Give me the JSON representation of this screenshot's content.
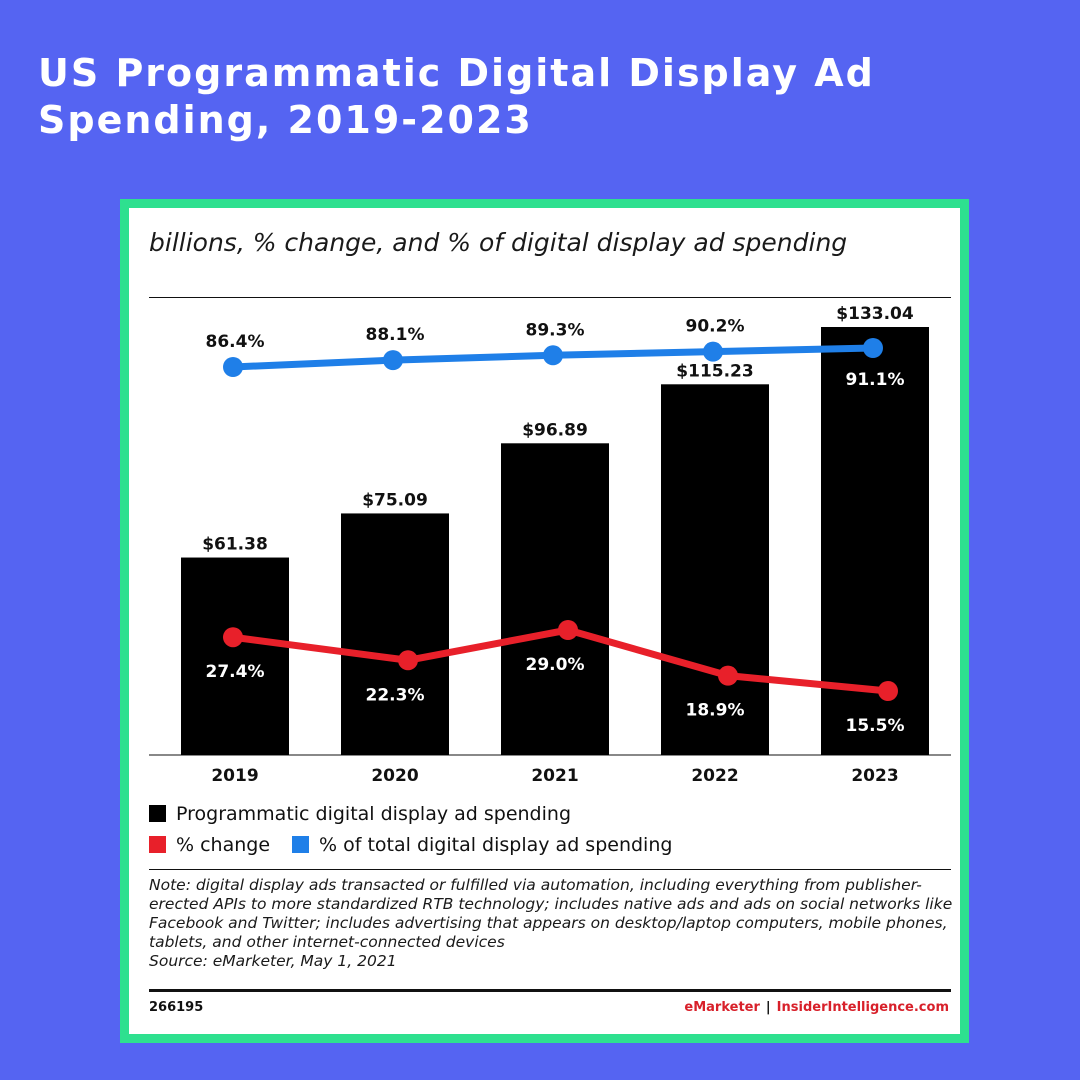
{
  "page": {
    "title": "US Programmatic Digital Display Ad Spending, 2019-2023"
  },
  "card": {
    "subtitle": "billions, % change, and % of digital display ad spending",
    "note": "Note: digital display ads transacted or fulfilled via automation, including everything from publisher-erected APIs to more standardized RTB technology; includes native ads and ads on social networks like Facebook and Twitter; includes advertising that appears on desktop/laptop computers, mobile phones, tablets, and other internet-connected devices",
    "source": "Source: eMarketer, May 1, 2021",
    "chart_id": "266195",
    "brand_left": "eMarketer",
    "brand_sep": "|",
    "brand_right": "InsiderIntelligence.com"
  },
  "legend": {
    "bars": "Programmatic digital display ad spending",
    "change": "% change",
    "share": "% of total digital display ad spending"
  },
  "colors": {
    "bars": "#000000",
    "change": "#e8202a",
    "share": "#1f7fe8"
  },
  "chart_data": {
    "type": "bar",
    "categories": [
      "2019",
      "2020",
      "2021",
      "2022",
      "2023"
    ],
    "series": [
      {
        "name": "Programmatic digital display ad spending",
        "type": "bar",
        "values": [
          61.38,
          75.09,
          96.89,
          115.23,
          133.04
        ],
        "labels": [
          "$61.38",
          "$75.09",
          "$96.89",
          "$115.23",
          "$133.04"
        ]
      },
      {
        "name": "% change",
        "type": "line",
        "values": [
          27.4,
          22.3,
          29.0,
          18.9,
          15.5
        ],
        "labels": [
          "27.4%",
          "22.3%",
          "29.0%",
          "18.9%",
          "15.5%"
        ]
      },
      {
        "name": "% of total digital display ad spending",
        "type": "line",
        "values": [
          86.4,
          88.1,
          89.3,
          90.2,
          91.1
        ],
        "labels": [
          "86.4%",
          "88.1%",
          "89.3%",
          "90.2%",
          "91.1%"
        ]
      }
    ],
    "grid": false,
    "legend_position": "bottom-left"
  }
}
